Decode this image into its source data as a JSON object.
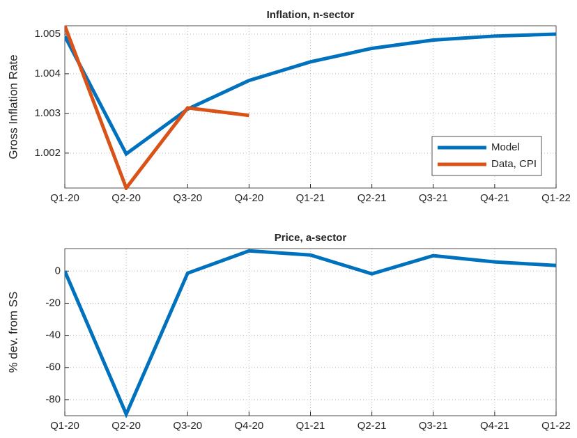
{
  "chart_data": [
    {
      "type": "line",
      "title": "Inflation, n-sector",
      "y_label": "Gross Inflation Rate",
      "categories": [
        "Q1-20",
        "Q2-20",
        "Q3-20",
        "Q4-20",
        "Q1-21",
        "Q2-21",
        "Q3-21",
        "Q4-21",
        "Q1-22"
      ],
      "series": [
        {
          "name": "Model",
          "color": "#0072bd",
          "values": [
            1.00495,
            1.00198,
            1.00311,
            1.00383,
            1.0043,
            1.00464,
            1.00485,
            1.00495,
            1.005
          ]
        },
        {
          "name": "Data, CPI",
          "color": "#d95319",
          "values": [
            1.00521,
            1.00112,
            1.00314,
            1.00295,
            null,
            null,
            null,
            null,
            null
          ]
        }
      ],
      "ylim": [
        1.00112,
        1.00521
      ],
      "yticks": [
        1.002,
        1.003,
        1.004,
        1.005
      ],
      "grid": true,
      "legend": "southeast"
    },
    {
      "type": "line",
      "title": "Price, a-sector",
      "y_label": "% dev. from SS",
      "categories": [
        "Q1-20",
        "Q2-20",
        "Q3-20",
        "Q4-20",
        "Q1-21",
        "Q2-21",
        "Q3-21",
        "Q4-21",
        "Q1-22"
      ],
      "series": [
        {
          "color": "#0072bd",
          "values": [
            0,
            -89,
            -1.3,
            12.6,
            10,
            -1.7,
            9.6,
            5.7,
            3.5
          ]
        }
      ],
      "ylim": [
        -90,
        14
      ],
      "yticks": [
        -80,
        -60,
        -40,
        -20,
        0
      ],
      "grid": true
    }
  ]
}
